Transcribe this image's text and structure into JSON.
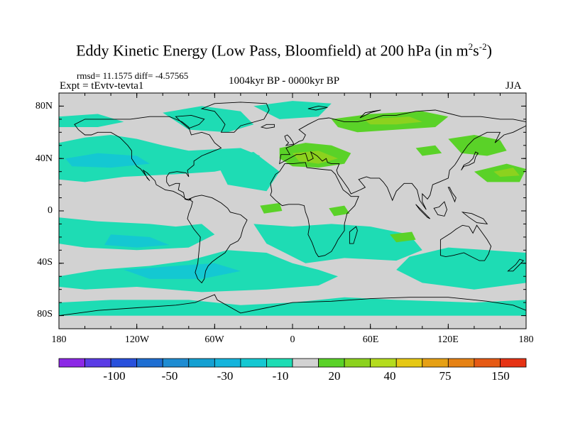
{
  "title": {
    "main": "Eddy Kinetic Energy (Low Pass, Bloomfield) at 200 hPa (in m",
    "sup1": "2",
    "mid": "s",
    "sup2": "-2",
    "end": ")"
  },
  "stats_text": "rmsd= 11.1575  diff= -4.57565",
  "experiment_text": "Expt = tEvtv-tevta1",
  "period_text": "1004kyr BP - 0000kyr BP",
  "season_text": "JJA",
  "lat_labels": [
    "80N",
    "40N",
    "0",
    "40S",
    "80S"
  ],
  "lon_labels": [
    "180",
    "120W",
    "60W",
    "0",
    "60E",
    "120E",
    "180"
  ],
  "colorbar": {
    "colors": [
      "#8c28e6",
      "#5a3ce6",
      "#2850dc",
      "#1e6ed2",
      "#1e8cd2",
      "#14a0d2",
      "#14b4dc",
      "#14c8d2",
      "#1edcb4",
      "#d2d2d2",
      "#5ad228",
      "#8cd21e",
      "#b4dc1e",
      "#e6c814",
      "#e6a014",
      "#e68214",
      "#e65a14",
      "#e63214"
    ],
    "labels": [
      "-100",
      "-50",
      "-30",
      "-10",
      "20",
      "40",
      "75",
      "150"
    ]
  },
  "map_colors": {
    "background": "#d2d2d2",
    "neg_light": "#1edcb4",
    "neg_mid": "#14c8d2",
    "neg_strong": "#14b4dc",
    "pos_light": "#8cd21e",
    "pos_mid": "#5ad228",
    "pos_strong": "#b4dc1e"
  }
}
